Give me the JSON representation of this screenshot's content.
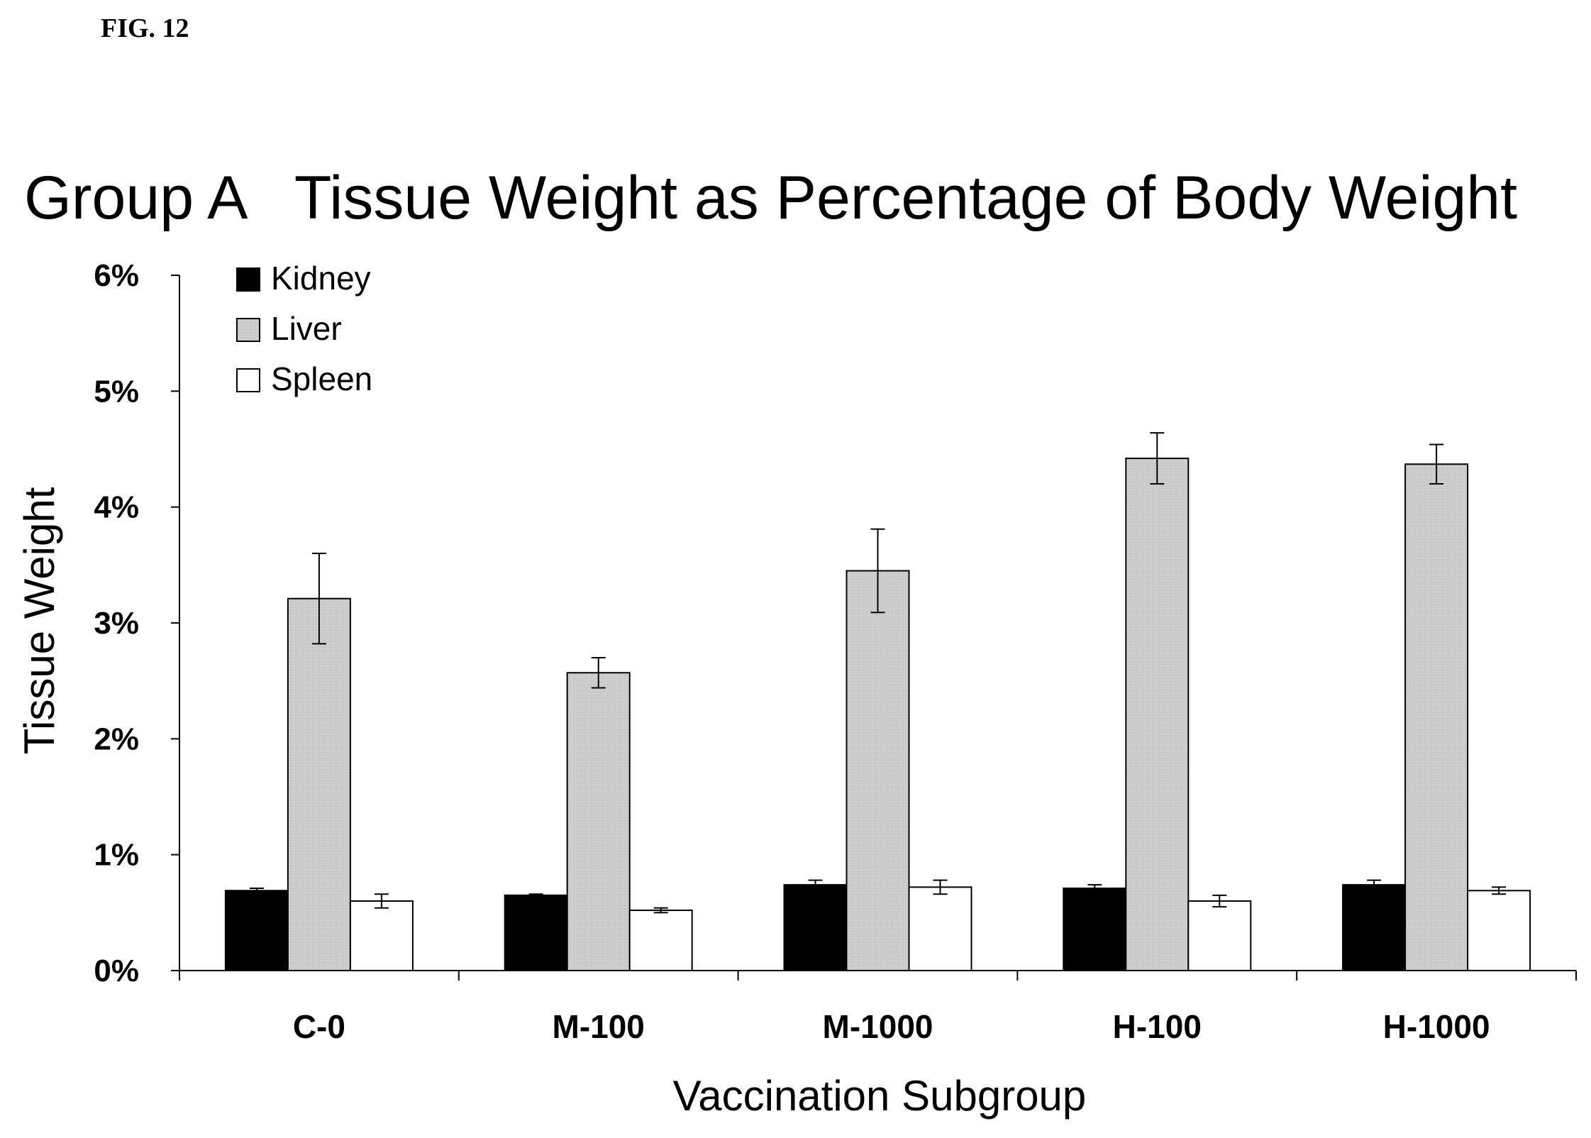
{
  "figure_label": "FIG. 12",
  "chart_data": {
    "type": "bar",
    "title": "Group A   Tissue Weight as Percentage of Body Weight",
    "xlabel": "Vaccination Subgroup",
    "ylabel": "Tissue Weight",
    "categories": [
      "C-0",
      "M-100",
      "M-1000",
      "H-100",
      "H-1000"
    ],
    "ylim": [
      0,
      6
    ],
    "yticks": [
      0,
      1,
      2,
      3,
      4,
      5,
      6
    ],
    "ytick_labels": [
      "0%",
      "1%",
      "2%",
      "3%",
      "4%",
      "5%",
      "6%"
    ],
    "grid": false,
    "legend_position": "top-left",
    "series": [
      {
        "name": "Kidney",
        "color": "#000000",
        "values": [
          0.69,
          0.65,
          0.74,
          0.71,
          0.74
        ],
        "errors": [
          0.02,
          0.01,
          0.04,
          0.03,
          0.04
        ]
      },
      {
        "name": "Liver",
        "color": "#c6c6c6",
        "values": [
          3.21,
          2.57,
          3.45,
          4.42,
          4.37
        ],
        "errors": [
          0.39,
          0.13,
          0.36,
          0.22,
          0.17
        ]
      },
      {
        "name": "Spleen",
        "color": "#ffffff",
        "values": [
          0.6,
          0.52,
          0.72,
          0.6,
          0.69
        ],
        "errors": [
          0.06,
          0.02,
          0.06,
          0.05,
          0.03
        ]
      }
    ]
  }
}
